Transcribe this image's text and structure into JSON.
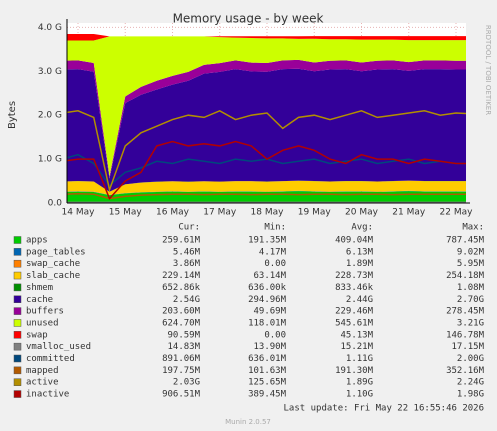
{
  "chart_data": {
    "type": "area",
    "title": "Memory usage - by week",
    "y_label": "Bytes",
    "side_text": "RRDTOOL / TOBI OETIKER",
    "footer_update": "Last update: Fri May 22 16:55:46 2026",
    "footer_version": "Munin 2.0.57",
    "stat_headers": [
      "Cur:",
      "Min:",
      "Avg:",
      "Max:"
    ],
    "categories": [
      null,
      "14 May",
      null,
      null,
      "15 May",
      null,
      null,
      "16 May",
      null,
      null,
      "17 May",
      null,
      null,
      "18 May",
      null,
      null,
      "19 May",
      null,
      null,
      "20 May",
      null,
      null,
      "21 May",
      null,
      null,
      "22 May",
      null
    ],
    "ylim": [
      0,
      4.1
    ],
    "yticks": [
      {
        "value": 0,
        "label": "0.0"
      },
      {
        "value": 1,
        "label": "1.0 G"
      },
      {
        "value": 2,
        "label": "2.0 G"
      },
      {
        "value": 3,
        "label": "3.0 G"
      },
      {
        "value": 4,
        "label": "4.0 G"
      }
    ],
    "grid": true,
    "series": [
      {
        "name": "apps",
        "type": "area",
        "color": "#00cc00",
        "stats": [
          "259.61M",
          "191.35M",
          "409.04M",
          "787.45M"
        ],
        "values": [
          0.25,
          0.26,
          0.25,
          0.18,
          0.22,
          0.24,
          0.25,
          0.26,
          0.25,
          0.26,
          0.25,
          0.26,
          0.26,
          0.25,
          0.26,
          0.27,
          0.26,
          0.25,
          0.26,
          0.26,
          0.25,
          0.26,
          0.27,
          0.26,
          0.26,
          0.26,
          0.26
        ]
      },
      {
        "name": "page_tables",
        "type": "area",
        "color": "#0066b3",
        "stats": [
          "5.46M",
          "4.17M",
          "6.13M",
          "9.02M"
        ],
        "values": [
          0.005,
          0.005,
          0.005,
          0.005,
          0.005,
          0.005,
          0.005,
          0.005,
          0.005,
          0.005,
          0.005,
          0.005,
          0.005,
          0.005,
          0.005,
          0.005,
          0.005,
          0.005,
          0.005,
          0.005,
          0.005,
          0.005,
          0.005,
          0.005,
          0.005,
          0.005,
          0.005
        ]
      },
      {
        "name": "swap_cache",
        "type": "area",
        "color": "#ff8000",
        "stats": [
          "3.86M",
          "0.00",
          "1.89M",
          "5.95M"
        ],
        "values": [
          0.004,
          0.004,
          0.004,
          0,
          0,
          0,
          0,
          0,
          0,
          0,
          0.001,
          0.002,
          0.002,
          0.003,
          0.003,
          0.003,
          0.004,
          0.004,
          0.004,
          0.004,
          0.004,
          0.004,
          0.004,
          0.004,
          0.004,
          0.004,
          0.004
        ]
      },
      {
        "name": "slab_cache",
        "type": "area",
        "color": "#ffcc00",
        "stats": [
          "229.14M",
          "63.14M",
          "228.73M",
          "254.18M"
        ],
        "values": [
          0.23,
          0.23,
          0.23,
          0.07,
          0.2,
          0.22,
          0.23,
          0.23,
          0.23,
          0.23,
          0.23,
          0.23,
          0.23,
          0.23,
          0.23,
          0.23,
          0.23,
          0.23,
          0.23,
          0.23,
          0.23,
          0.23,
          0.23,
          0.23,
          0.23,
          0.23,
          0.23
        ]
      },
      {
        "name": "shmem",
        "type": "area",
        "color": "#008f00",
        "stats": [
          "652.86k",
          "636.00k",
          "833.46k",
          "1.08M"
        ],
        "values": [
          0.001,
          0.001,
          0.001,
          0.001,
          0.001,
          0.001,
          0.001,
          0.001,
          0.001,
          0.001,
          0.001,
          0.001,
          0.001,
          0.001,
          0.001,
          0.001,
          0.001,
          0.001,
          0.001,
          0.001,
          0.001,
          0.001,
          0.001,
          0.001,
          0.001,
          0.001,
          0.001
        ]
      },
      {
        "name": "cache",
        "type": "area",
        "color": "#330099",
        "stats": [
          "2.54G",
          "294.96M",
          "2.44G",
          "2.70G"
        ],
        "values": [
          2.55,
          2.55,
          2.5,
          0.3,
          1.85,
          2.0,
          2.1,
          2.2,
          2.3,
          2.45,
          2.5,
          2.55,
          2.5,
          2.5,
          2.55,
          2.55,
          2.5,
          2.55,
          2.55,
          2.5,
          2.55,
          2.55,
          2.5,
          2.55,
          2.55,
          2.54,
          2.54
        ]
      },
      {
        "name": "buffers",
        "type": "area",
        "color": "#990099",
        "stats": [
          "203.60M",
          "49.69M",
          "229.46M",
          "278.45M"
        ],
        "values": [
          0.2,
          0.2,
          0.2,
          0.05,
          0.15,
          0.18,
          0.2,
          0.2,
          0.2,
          0.2,
          0.2,
          0.2,
          0.2,
          0.2,
          0.2,
          0.2,
          0.2,
          0.2,
          0.2,
          0.2,
          0.2,
          0.2,
          0.2,
          0.2,
          0.2,
          0.2,
          0.2
        ]
      },
      {
        "name": "unused",
        "type": "area",
        "color": "#ccff00",
        "stats": [
          "624.70M",
          "118.01M",
          "545.61M",
          "3.21G"
        ],
        "values": [
          0.46,
          0.45,
          0.51,
          3.19,
          1.37,
          1.15,
          1.01,
          0.9,
          0.81,
          0.65,
          0.59,
          0.52,
          0.56,
          0.56,
          0.5,
          0.48,
          0.54,
          0.49,
          0.48,
          0.52,
          0.48,
          0.47,
          0.5,
          0.46,
          0.46,
          0.47,
          0.47
        ]
      },
      {
        "name": "swap",
        "type": "area",
        "color": "#ff0000",
        "stats": [
          "90.59M",
          "0.00",
          "45.13M",
          "146.78M"
        ],
        "values": [
          0.15,
          0.15,
          0.15,
          0,
          0,
          0,
          0,
          0,
          0,
          0,
          0.02,
          0.03,
          0.04,
          0.05,
          0.05,
          0.06,
          0.06,
          0.07,
          0.07,
          0.08,
          0.08,
          0.08,
          0.09,
          0.09,
          0.09,
          0.09,
          0.09
        ]
      },
      {
        "name": "vmalloc_used",
        "type": "line",
        "color": "#808080",
        "stats": [
          "14.83M",
          "13.90M",
          "15.21M",
          "17.15M"
        ],
        "values": [
          0.015,
          0.015,
          0.015,
          0.014,
          0.015,
          0.015,
          0.015,
          0.015,
          0.015,
          0.015,
          0.015,
          0.015,
          0.015,
          0.015,
          0.015,
          0.015,
          0.015,
          0.015,
          0.015,
          0.015,
          0.015,
          0.015,
          0.015,
          0.015,
          0.015,
          0.015,
          0.015
        ]
      },
      {
        "name": "committed",
        "type": "line",
        "color": "#00487d",
        "stats": [
          "891.06M",
          "636.01M",
          "1.11G",
          "2.00G"
        ],
        "values": [
          1.0,
          1.1,
          0.9,
          0.4,
          0.7,
          0.8,
          0.95,
          0.9,
          1.0,
          0.95,
          0.9,
          1.0,
          0.95,
          1.0,
          0.9,
          0.95,
          1.0,
          0.9,
          0.95,
          1.0,
          0.9,
          0.95,
          1.0,
          0.9,
          0.95,
          0.9,
          0.9
        ]
      },
      {
        "name": "mapped",
        "type": "line",
        "color": "#b35a00",
        "stats": [
          "197.75M",
          "101.63M",
          "191.30M",
          "352.16M"
        ],
        "values": [
          0.2,
          0.21,
          0.2,
          0.1,
          0.15,
          0.18,
          0.19,
          0.2,
          0.2,
          0.19,
          0.2,
          0.2,
          0.19,
          0.2,
          0.2,
          0.19,
          0.2,
          0.2,
          0.19,
          0.2,
          0.2,
          0.19,
          0.2,
          0.2,
          0.2,
          0.2,
          0.2
        ]
      },
      {
        "name": "active",
        "type": "line",
        "color": "#b38f00",
        "stats": [
          "2.03G",
          "125.65M",
          "1.89G",
          "2.24G"
        ],
        "values": [
          2.05,
          2.1,
          1.95,
          0.3,
          1.3,
          1.6,
          1.75,
          1.9,
          2.0,
          1.95,
          2.1,
          1.9,
          2.0,
          2.05,
          1.7,
          1.95,
          2.0,
          1.9,
          2.0,
          2.1,
          1.95,
          2.0,
          2.05,
          2.1,
          2.0,
          2.05,
          2.03
        ]
      },
      {
        "name": "inactive",
        "type": "line",
        "color": "#b30000",
        "stats": [
          "906.51M",
          "389.45M",
          "1.10G",
          "1.98G"
        ],
        "values": [
          0.95,
          1.0,
          1.0,
          0.1,
          0.5,
          0.7,
          1.3,
          1.4,
          1.3,
          1.35,
          1.3,
          1.4,
          1.3,
          1.0,
          1.2,
          1.3,
          1.2,
          1.0,
          0.9,
          1.1,
          1.0,
          1.0,
          0.9,
          1.0,
          0.95,
          0.9,
          0.9
        ]
      }
    ]
  }
}
